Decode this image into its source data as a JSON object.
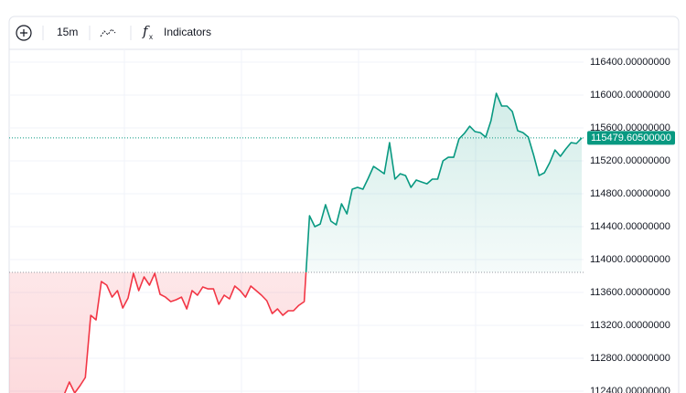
{
  "toolbar": {
    "interval": "15m",
    "indicators": "Indicators"
  },
  "chart_data": {
    "type": "baseline-line",
    "values": [
      112356,
      112511,
      112378,
      112467,
      112567,
      113322,
      113267,
      113733,
      113689,
      113544,
      113622,
      113411,
      113533,
      113833,
      113622,
      113789,
      113689,
      113833,
      113578,
      113544,
      113489,
      113511,
      113544,
      113400,
      113622,
      113567,
      113667,
      113644,
      113644,
      113456,
      113567,
      113522,
      113678,
      113622,
      113544,
      113678,
      113622,
      113567,
      113500,
      113344,
      113400,
      113322,
      113378,
      113378,
      113444,
      113489,
      114533,
      114400,
      114433,
      114667,
      114467,
      114422,
      114678,
      114556,
      114856,
      114878,
      114856,
      114989,
      115133,
      115089,
      115044,
      115422,
      114978,
      115044,
      115022,
      114878,
      114967,
      114944,
      114922,
      114978,
      114978,
      115200,
      115244,
      115244,
      115467,
      115533,
      115622,
      115556,
      115544,
      115489,
      115689,
      116022,
      115867,
      115867,
      115800,
      115567,
      115544,
      115489,
      115267,
      115022,
      115056,
      115178,
      115333,
      115256,
      115344,
      115422,
      115411,
      115479.605
    ],
    "baseline": 113845,
    "up_color": "#089981",
    "down_color": "#f23645",
    "last_price": {
      "value": 115479.605,
      "label": "115479.60500000"
    },
    "ylim": [
      112378,
      116556
    ],
    "yticks": [
      {
        "value": 116400,
        "label": "116400.00000000"
      },
      {
        "value": 116000,
        "label": "116000.00000000"
      },
      {
        "value": 115600,
        "label": "115600.00000000"
      },
      {
        "value": 115200,
        "label": "115200.00000000"
      },
      {
        "value": 114800,
        "label": "114800.00000000"
      },
      {
        "value": 114400,
        "label": "114400.00000000"
      },
      {
        "value": 114000,
        "label": "114000.00000000"
      },
      {
        "value": 113600,
        "label": "113600.00000000"
      },
      {
        "value": 113200,
        "label": "113200.00000000"
      },
      {
        "value": 112800,
        "label": "112800.00000000"
      },
      {
        "value": 112400,
        "label": "112400.00000000"
      }
    ],
    "grid": true
  }
}
